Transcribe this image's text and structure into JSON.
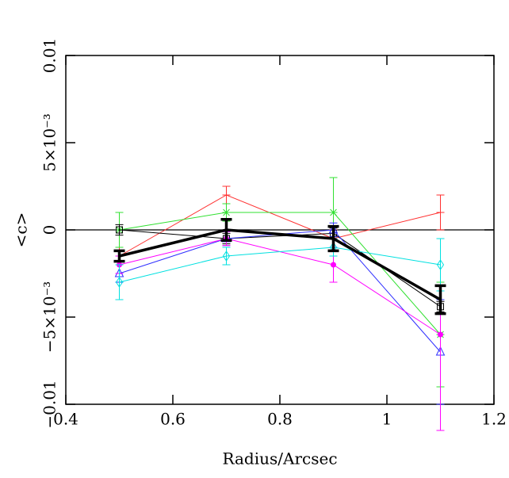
{
  "chart_data": {
    "type": "line",
    "x_label": "Radius/Arcsec",
    "y_label": "<c>",
    "xlim": [
      0.4,
      1.2
    ],
    "xticks": [
      {
        "value": 0.4,
        "label": "0.4"
      },
      0.6,
      0.8,
      1,
      1.2
    ],
    "ylim": [
      -0.01,
      0.01
    ],
    "yticks": [
      {
        "value": -0.01,
        "label": "−0.01"
      },
      {
        "value": -0.005,
        "label": "−5×10⁻³"
      },
      0,
      {
        "value": 0.005,
        "label": "5×10⁻³"
      },
      0.01
    ],
    "hline": 0,
    "x": [
      0.5,
      0.7,
      0.9,
      1.1
    ],
    "series": [
      {
        "color": "#ff3030",
        "marker": "plus",
        "linewidth": 1,
        "values": [
          -0.0015,
          0.002,
          -0.0005,
          0.001
        ],
        "errors": [
          0.0005,
          0.0005,
          0.0005,
          0.001
        ]
      },
      {
        "color": "#30e030",
        "marker": "asterisk",
        "linewidth": 1,
        "values": [
          0,
          0.001,
          0.001,
          -0.006
        ],
        "errors": [
          0.001,
          0.0005,
          0.002,
          0.003
        ]
      },
      {
        "color": "#000000",
        "marker": "square",
        "linewidth": 1,
        "values": [
          0,
          -0.0005,
          -0.0002,
          -0.0044
        ],
        "errors": [
          0.0003,
          0.0003,
          0.0003,
          0.0003
        ]
      },
      {
        "color": "#3030ff",
        "marker": "triangle",
        "linewidth": 1,
        "values": [
          -0.0025,
          -0.0005,
          0,
          -0.007
        ],
        "errors": [
          0.0005,
          0.0004,
          0.0004,
          0.003
        ]
      },
      {
        "color": "#ff00ff",
        "marker": "dot",
        "linewidth": 1,
        "values": [
          -0.002,
          -0.0005,
          -0.002,
          -0.006
        ],
        "errors": [
          0.0005,
          0.0004,
          0.001,
          0.0055
        ]
      },
      {
        "color": "#00e0e0",
        "marker": "diamond",
        "linewidth": 1,
        "values": [
          -0.003,
          -0.0015,
          -0.001,
          -0.002
        ],
        "errors": [
          0.001,
          0.0005,
          0.0005,
          0.0015
        ]
      },
      {
        "color": "#000000",
        "marker": "none",
        "linewidth": 3.5,
        "values": [
          -0.0015,
          0,
          -0.0005,
          -0.004
        ],
        "errors": [
          0.0003,
          0.0006,
          0.0007,
          0.0008
        ]
      }
    ]
  }
}
